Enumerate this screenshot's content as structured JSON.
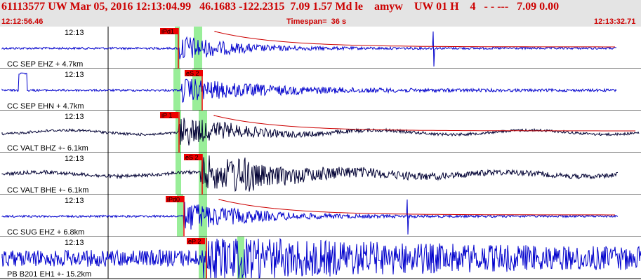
{
  "header": {
    "event_line": "61113577 UW Mar 05, 2016 12:13:04.99   46.1683 -122.2315  7.09 1.57 Md le    amyw    UW 01 H    4   - - ---   7.09 0.00",
    "start_time": "12:12:56.46",
    "timespan": "Timespan=  36 s",
    "end_time": "12:13:32.71"
  },
  "colors": {
    "trace": "#0000cc",
    "trace_alt": "#000033",
    "pick": "#ee0000",
    "window": "#99ee99",
    "coda": "#cc0000",
    "header_bg": "#e4e4e4"
  },
  "panels": [
    {
      "time_label": "12:13",
      "station": "CC SEP EHZ",
      "distance": "+ 4.7km",
      "pick": "iPd1",
      "color": "#0000cc"
    },
    {
      "time_label": "12:13",
      "station": "CC SEP EHN",
      "distance": "+ 4.7km",
      "pick": "eS 2",
      "color": "#0000cc"
    },
    {
      "time_label": "12:13",
      "station": "CC VALT BHZ",
      "distance": "+- 6.1km",
      "pick": "iP 1",
      "color": "#000033"
    },
    {
      "time_label": "12:13",
      "station": "CC VALT BHE",
      "distance": "+- 6.1km",
      "pick": "eS 2",
      "color": "#000033"
    },
    {
      "time_label": "12:13",
      "station": "CC SUG EHZ",
      "distance": "+ 6.8km",
      "pick": "iPd0",
      "color": "#0000cc"
    },
    {
      "time_label": "12:13",
      "station": "PB B201 EH1",
      "distance": "+- 15.2km",
      "pick": "eP 2",
      "color": "#0000cc"
    }
  ]
}
